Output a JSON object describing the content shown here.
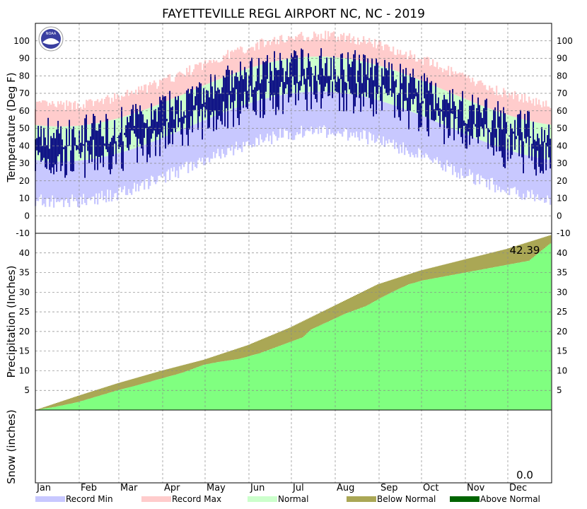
{
  "chart_data": {
    "type": "area",
    "title": "FAYETTEVILLE REGL AIRPORT NC, NC - 2019",
    "logo_text": "NOAA",
    "months": [
      "Jan",
      "Feb",
      "Mar",
      "Apr",
      "May",
      "Jun",
      "Jul",
      "Aug",
      "Sep",
      "Oct",
      "Nov",
      "Dec"
    ],
    "panels": {
      "temperature": {
        "ylabel": "Temperature (Deg F)",
        "ylim": [
          -10,
          110
        ],
        "ticks": [
          -10,
          0,
          10,
          20,
          30,
          40,
          50,
          60,
          70,
          80,
          90,
          100
        ]
      },
      "precipitation": {
        "ylabel": "Precipitation (Inches)",
        "ylim": [
          0,
          45
        ],
        "ticks": [
          5,
          10,
          15,
          20,
          25,
          30,
          35,
          40
        ],
        "total_label": "42.39",
        "observed_cumulative": {
          "day": [
            1,
            15,
            31,
            45,
            59,
            75,
            90,
            105,
            120,
            130,
            145,
            160,
            175,
            190,
            196,
            205,
            220,
            235,
            245,
            256,
            265,
            275,
            290,
            305,
            320,
            335,
            350,
            365
          ],
          "value": [
            0.0,
            0.8,
            2.0,
            3.5,
            5.0,
            6.5,
            8.0,
            9.5,
            11.5,
            12.2,
            13.0,
            14.5,
            16.5,
            18.5,
            20.5,
            22.0,
            24.5,
            26.5,
            28.5,
            30.5,
            32.0,
            33.0,
            34.0,
            35.0,
            36.0,
            37.0,
            38.0,
            42.39
          ]
        },
        "normal_cumulative": {
          "day": [
            1,
            31,
            59,
            90,
            120,
            151,
            181,
            212,
            243,
            273,
            304,
            334,
            365
          ],
          "value": [
            0.0,
            3.6,
            6.8,
            10.0,
            12.8,
            16.5,
            21.0,
            26.5,
            32.0,
            35.5,
            38.3,
            41.0,
            44.5
          ]
        }
      },
      "snow": {
        "ylabel": "Snow (inches)",
        "total_label": "0.0"
      }
    },
    "legend": [
      {
        "label": "Record Min",
        "color": "#c8c8ff"
      },
      {
        "label": "Record Max",
        "color": "#ffcccc"
      },
      {
        "label": "Normal",
        "color": "#ccffcc"
      },
      {
        "label": "Below Normal",
        "color": "#aaa755"
      },
      {
        "label": "Above Normal",
        "color": "#006400"
      }
    ],
    "colors": {
      "observed_temp": "#000080",
      "precip_observed": "#80ff80",
      "below_normal": "#aaa755",
      "above_normal": "#006400"
    }
  }
}
